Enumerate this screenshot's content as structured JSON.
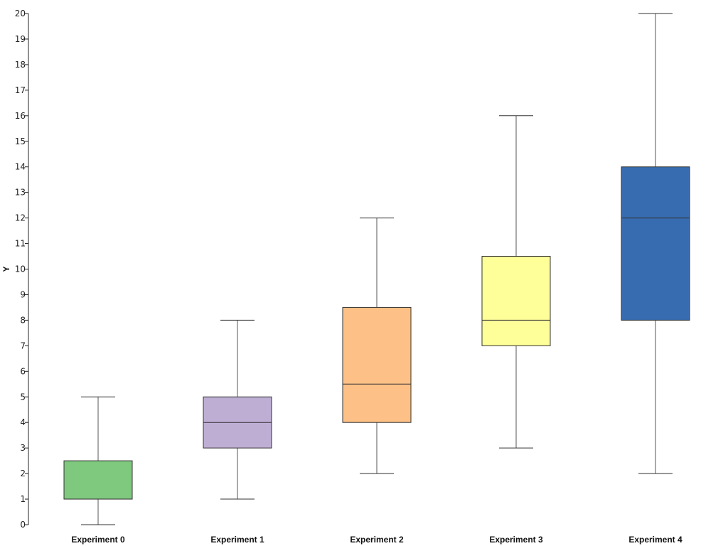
{
  "chart_data": {
    "type": "box",
    "title": "",
    "xlabel": "",
    "ylabel": "Y",
    "ylim": [
      0,
      20
    ],
    "yticks": [
      0,
      1,
      2,
      3,
      4,
      5,
      6,
      7,
      8,
      9,
      10,
      11,
      12,
      13,
      14,
      15,
      16,
      17,
      18,
      19,
      20
    ],
    "grid": false,
    "categories": [
      "Experiment 0",
      "Experiment 1",
      "Experiment 2",
      "Experiment 3",
      "Experiment 4"
    ],
    "boxes": [
      {
        "name": "Experiment 0",
        "min": 0,
        "q1": 1,
        "median": 1,
        "q3": 2.5,
        "max": 5,
        "color": "#7fc97f"
      },
      {
        "name": "Experiment 1",
        "min": 1,
        "q1": 3,
        "median": 4,
        "q3": 5,
        "max": 8,
        "color": "#beaed4"
      },
      {
        "name": "Experiment 2",
        "min": 2,
        "q1": 4,
        "median": 5.5,
        "q3": 8.5,
        "max": 12,
        "color": "#fdc086"
      },
      {
        "name": "Experiment 3",
        "min": 3,
        "q1": 7,
        "median": 8,
        "q3": 10.5,
        "max": 16,
        "color": "#ffff99"
      },
      {
        "name": "Experiment 4",
        "min": 2,
        "q1": 8,
        "median": 12,
        "q3": 14,
        "max": 20,
        "color": "#386cb0"
      }
    ]
  }
}
